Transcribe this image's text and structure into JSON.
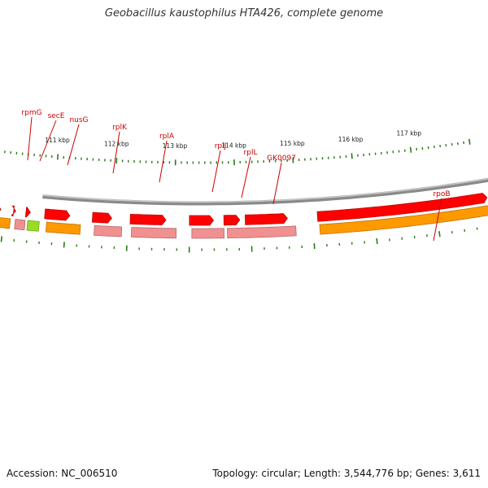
{
  "title": "Geobacillus kaustophilus HTA426, complete genome",
  "footer": {
    "accession": "Accession: NC_006510",
    "topology": "Topology: circular; Length: 3,544,776 bp; Genes: 3,611"
  },
  "colors": {
    "gene_label": "#cc0000",
    "tick": "#2a7a1a",
    "backbone": "#8a8a8a",
    "feature_orange": "#ff9900",
    "feature_pink": "#f09090",
    "feature_red": "#ff0000",
    "feature_green": "#99dd22"
  },
  "genes": [
    {
      "name": "rpmG"
    },
    {
      "name": "secE"
    },
    {
      "name": "nusG"
    },
    {
      "name": "rplK"
    },
    {
      "name": "rplA"
    },
    {
      "name": "rplJ"
    },
    {
      "name": "rplL"
    },
    {
      "name": "GK0097"
    },
    {
      "name": "rpoB"
    }
  ],
  "kbp_labels": [
    "111 kbp",
    "112 kbp",
    "113 kbp",
    "114 kbp",
    "115 kbp",
    "116 kbp",
    "117 kbp"
  ]
}
